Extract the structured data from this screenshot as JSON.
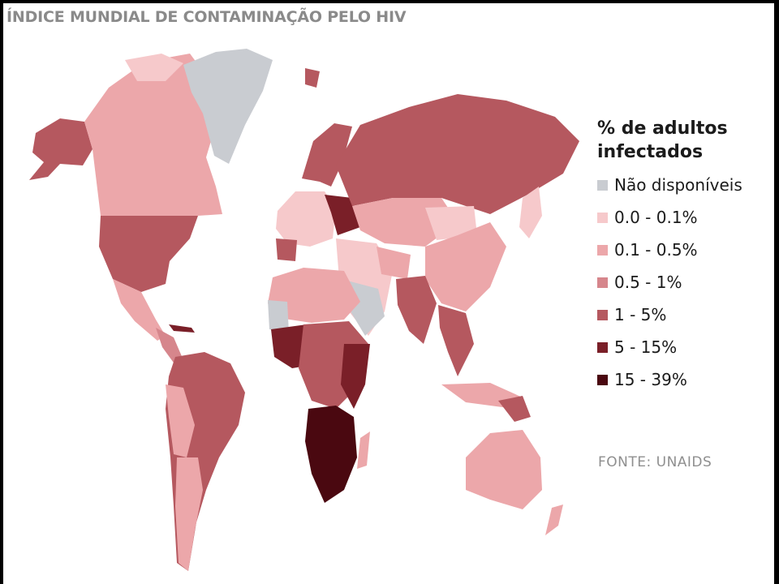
{
  "title": "ÍNDICE MUNDIAL DE CONTAMINAÇÃO PELO HIV",
  "legend": {
    "title_line1": "% de adultos",
    "title_line2": "infectados",
    "items": [
      {
        "label": "Não disponíveis",
        "color": "#c9ccd1"
      },
      {
        "label": "0.0 - 0.1%",
        "color": "#f6c9cb"
      },
      {
        "label": "0.1 - 0.5%",
        "color": "#eca7aa"
      },
      {
        "label": "0.5 - 1%",
        "color": "#d6868c"
      },
      {
        "label": "1 - 5%",
        "color": "#b5585f"
      },
      {
        "label": "5 - 15%",
        "color": "#7a1f28"
      },
      {
        "label": "15 - 39%",
        "color": "#4a0810"
      }
    ]
  },
  "source": "FONTE: UNAIDS"
}
